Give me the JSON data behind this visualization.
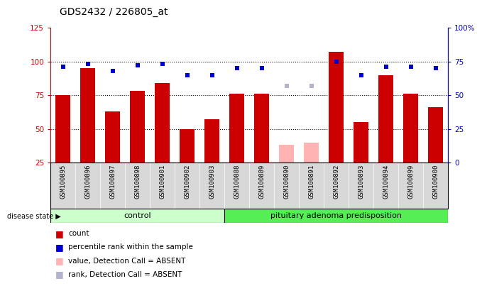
{
  "title": "GDS2432 / 226805_at",
  "samples": [
    "GSM100895",
    "GSM100896",
    "GSM100897",
    "GSM100898",
    "GSM100901",
    "GSM100902",
    "GSM100903",
    "GSM100888",
    "GSM100889",
    "GSM100890",
    "GSM100891",
    "GSM100892",
    "GSM100893",
    "GSM100894",
    "GSM100899",
    "GSM100900"
  ],
  "bar_values": [
    75,
    95,
    63,
    78,
    84,
    50,
    57,
    76,
    76,
    38,
    40,
    107,
    55,
    90,
    76,
    66
  ],
  "bar_absent": [
    false,
    false,
    false,
    false,
    false,
    false,
    false,
    false,
    false,
    true,
    true,
    false,
    false,
    false,
    false,
    false
  ],
  "rank_values": [
    71,
    73,
    68,
    72,
    73,
    65,
    65,
    70,
    70,
    57,
    57,
    75,
    65,
    71,
    71,
    70
  ],
  "rank_absent": [
    false,
    false,
    false,
    false,
    false,
    false,
    false,
    false,
    false,
    true,
    true,
    false,
    false,
    false,
    false,
    false
  ],
  "control_count": 7,
  "disease_label": "pituitary adenoma predisposition",
  "control_label": "control",
  "disease_state_label": "disease state",
  "ylim_left": [
    25,
    125
  ],
  "ylim_right": [
    0,
    100
  ],
  "yticks_left": [
    25,
    50,
    75,
    100,
    125
  ],
  "yticks_right": [
    0,
    25,
    50,
    75,
    100
  ],
  "ytick_right_labels": [
    "0",
    "25",
    "50",
    "75",
    "100%"
  ],
  "bar_color_normal": "#cc0000",
  "bar_color_absent": "#ffb3b3",
  "rank_color_normal": "#0000cc",
  "rank_color_absent": "#b3b3cc",
  "control_bg_light": "#ccffcc",
  "disease_bg_bright": "#55ee55",
  "sample_area_bg": "#d8d8d8",
  "bar_width": 0.6,
  "legend_items": [
    {
      "color": "#cc0000",
      "label": "count"
    },
    {
      "color": "#0000cc",
      "label": "percentile rank within the sample"
    },
    {
      "color": "#ffb3b3",
      "label": "value, Detection Call = ABSENT"
    },
    {
      "color": "#b3b3cc",
      "label": "rank, Detection Call = ABSENT"
    }
  ]
}
